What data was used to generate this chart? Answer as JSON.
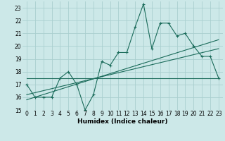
{
  "title": "",
  "xlabel": "Humidex (Indice chaleur)",
  "ylabel": "",
  "bg_color": "#cce8e8",
  "grid_color": "#aacfcf",
  "line_color": "#1a6b5a",
  "x_data": [
    0,
    1,
    2,
    3,
    4,
    5,
    6,
    7,
    8,
    9,
    10,
    11,
    12,
    13,
    14,
    15,
    16,
    17,
    18,
    19,
    20,
    21,
    22,
    23
  ],
  "y_main": [
    17,
    16,
    16,
    16,
    17.5,
    18,
    17,
    15,
    16.2,
    18.8,
    18.5,
    19.5,
    19.5,
    21.5,
    23.3,
    19.8,
    21.8,
    21.8,
    20.8,
    21,
    20,
    19.2,
    19.2,
    17.5
  ],
  "trend1_x": [
    0,
    23
  ],
  "trend1_y": [
    16.2,
    19.8
  ],
  "trend2_x": [
    0,
    23
  ],
  "trend2_y": [
    15.8,
    20.5
  ],
  "trend3_x": [
    0,
    23
  ],
  "trend3_y": [
    17.5,
    17.5
  ],
  "xlim": [
    -0.5,
    23.5
  ],
  "ylim": [
    15,
    23.5
  ],
  "yticks": [
    15,
    16,
    17,
    18,
    19,
    20,
    21,
    22,
    23
  ],
  "xticks": [
    0,
    1,
    2,
    3,
    4,
    5,
    6,
    7,
    8,
    9,
    10,
    11,
    12,
    13,
    14,
    15,
    16,
    17,
    18,
    19,
    20,
    21,
    22,
    23
  ],
  "tick_fontsize": 5.5,
  "xlabel_fontsize": 6.5,
  "marker_size": 2.5,
  "line_width": 0.8
}
